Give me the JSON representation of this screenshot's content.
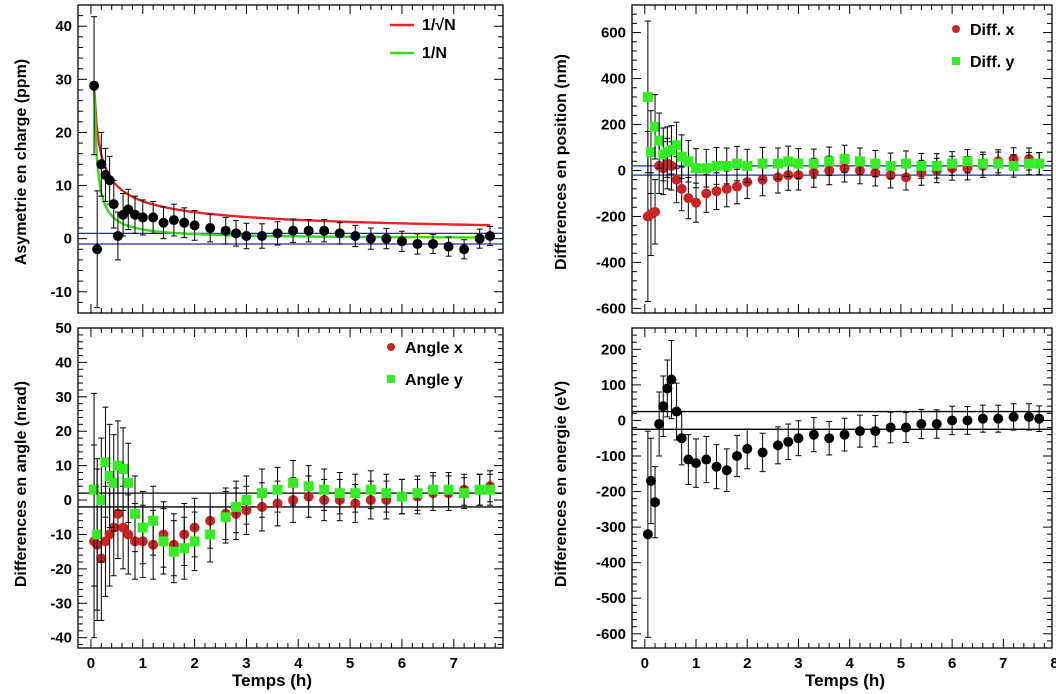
{
  "colors": {
    "red_curve": "#e8232a",
    "green_curve": "#33dd11",
    "blue_line": "#1a2ea8",
    "black": "#000000",
    "red_marker": "#cc2222",
    "green_marker": "#33ee22"
  },
  "chart_data": [
    {
      "type": "scatter",
      "id": "charge",
      "ylabel": "Asymetrie en charge  (ppm)",
      "xlabel": "",
      "xlim": [
        -0.25,
        7.95
      ],
      "ylim": [
        -14,
        44
      ],
      "yticks": [
        -10,
        0,
        10,
        20,
        30,
        40
      ],
      "xticks": [],
      "grid": false,
      "legend": "top-right",
      "series": [
        {
          "name": "",
          "marker": "circle",
          "color": "#000000",
          "x": [
            0.06,
            0.12,
            0.2,
            0.28,
            0.36,
            0.44,
            0.52,
            0.62,
            0.72,
            0.85,
            1.0,
            1.2,
            1.4,
            1.6,
            1.8,
            2.0,
            2.3,
            2.6,
            2.8,
            3.0,
            3.3,
            3.6,
            3.9,
            4.2,
            4.5,
            4.8,
            5.1,
            5.4,
            5.7,
            6.0,
            6.3,
            6.6,
            6.9,
            7.2,
            7.5,
            7.7
          ],
          "y": [
            28.8,
            -2.0,
            14.0,
            12.0,
            11.0,
            6.5,
            0.5,
            4.5,
            5.5,
            4.5,
            4.0,
            4.0,
            3.0,
            3.5,
            3.0,
            2.5,
            2.0,
            1.5,
            1.0,
            0.5,
            0.5,
            1.0,
            1.5,
            1.5,
            1.5,
            1.0,
            0.5,
            0.0,
            0.0,
            -0.5,
            -1.0,
            -1.0,
            -1.5,
            -2.0,
            0.0,
            0.5
          ],
          "err": [
            13.0,
            11.0,
            6.0,
            5.0,
            4.5,
            4.5,
            4.5,
            4.0,
            3.8,
            3.5,
            3.3,
            3.0,
            3.0,
            3.0,
            2.8,
            2.8,
            2.6,
            2.5,
            2.4,
            2.4,
            2.3,
            2.2,
            2.2,
            2.1,
            2.1,
            2.0,
            2.0,
            2.0,
            1.9,
            1.9,
            1.9,
            1.8,
            1.8,
            1.8,
            1.8,
            1.8
          ]
        }
      ],
      "curves": [
        {
          "name": "1/√N",
          "color": "#e8232a",
          "form": "inv_sqrt",
          "x0": 0.06,
          "y0": 28.8
        },
        {
          "name": "1/N",
          "color": "#33dd11",
          "form": "inv",
          "x0": 0.06,
          "y0": 28.8
        }
      ],
      "hlines": [
        {
          "y": 1.0,
          "color": "#1a2ea8"
        },
        {
          "y": -1.0,
          "color": "#1a2ea8"
        }
      ]
    },
    {
      "type": "scatter",
      "id": "position",
      "ylabel": "Differences en position  (nm)",
      "xlabel": "",
      "xlim": [
        -0.25,
        7.95
      ],
      "ylim": [
        -620,
        720
      ],
      "yticks": [
        -600,
        -400,
        -200,
        0,
        200,
        400,
        600
      ],
      "xticks": [],
      "grid": false,
      "legend": "top-right",
      "series": [
        {
          "name": "Diff.  x",
          "marker": "circle",
          "color": "#cc2222",
          "x": [
            0.06,
            0.12,
            0.2,
            0.28,
            0.36,
            0.44,
            0.52,
            0.62,
            0.72,
            0.85,
            1.0,
            1.2,
            1.4,
            1.6,
            1.8,
            2.0,
            2.3,
            2.6,
            2.8,
            3.0,
            3.3,
            3.6,
            3.9,
            4.2,
            4.5,
            4.8,
            5.1,
            5.4,
            5.7,
            6.0,
            6.3,
            6.6,
            6.9,
            7.2,
            7.5,
            7.7
          ],
          "y": [
            -200,
            -190,
            -180,
            20,
            10,
            30,
            20,
            -40,
            -80,
            -120,
            -140,
            -100,
            -90,
            -80,
            -70,
            -50,
            -40,
            -30,
            -20,
            -20,
            -10,
            0,
            10,
            0,
            -10,
            -20,
            -30,
            -10,
            0,
            10,
            10,
            20,
            40,
            50,
            50,
            30
          ],
          "err": [
            370,
            180,
            140,
            120,
            115,
            110,
            105,
            100,
            95,
            90,
            85,
            82,
            80,
            78,
            75,
            72,
            70,
            68,
            66,
            65,
            63,
            62,
            60,
            58,
            57,
            56,
            55,
            54,
            53,
            52,
            51,
            50,
            50,
            49,
            48,
            48
          ]
        },
        {
          "name": "Diff.  y",
          "marker": "square",
          "color": "#33ee22",
          "x": [
            0.06,
            0.12,
            0.2,
            0.28,
            0.36,
            0.44,
            0.52,
            0.62,
            0.72,
            0.85,
            1.0,
            1.2,
            1.4,
            1.6,
            1.8,
            2.0,
            2.3,
            2.6,
            2.8,
            3.0,
            3.3,
            3.6,
            3.9,
            4.2,
            4.5,
            4.8,
            5.1,
            5.4,
            5.7,
            6.0,
            6.3,
            6.6,
            6.9,
            7.2,
            7.5,
            7.7
          ],
          "y": [
            320,
            80,
            190,
            130,
            70,
            80,
            90,
            110,
            60,
            40,
            10,
            10,
            20,
            20,
            30,
            20,
            30,
            30,
            40,
            30,
            30,
            40,
            50,
            40,
            30,
            20,
            30,
            20,
            20,
            30,
            40,
            30,
            30,
            20,
            30,
            30
          ],
          "err": [
            330,
            180,
            140,
            120,
            115,
            110,
            105,
            100,
            95,
            90,
            85,
            82,
            80,
            78,
            75,
            72,
            70,
            68,
            66,
            65,
            63,
            62,
            60,
            58,
            57,
            56,
            55,
            54,
            53,
            52,
            51,
            50,
            50,
            49,
            48,
            48
          ]
        }
      ],
      "curves": [],
      "hlines": [
        {
          "y": 20,
          "color": "#1a2ea8"
        },
        {
          "y": -20,
          "color": "#1a2ea8"
        }
      ]
    },
    {
      "type": "scatter",
      "id": "angle",
      "ylabel": "Differences en angle  (nrad)",
      "xlabel": "Temps  (h)",
      "xlim": [
        -0.25,
        7.95
      ],
      "ylim": [
        -43,
        50
      ],
      "yticks": [
        -40,
        -30,
        -20,
        -10,
        0,
        10,
        20,
        30,
        40,
        50
      ],
      "xticks": [
        0,
        1,
        2,
        3,
        4,
        5,
        6,
        7
      ],
      "xticklabels": [
        "0",
        "1",
        "2",
        "3",
        "4",
        "5",
        "6",
        "7"
      ],
      "grid": false,
      "legend": "top-right",
      "series": [
        {
          "name": "Angle x",
          "marker": "circle",
          "color": "#cc2222",
          "x": [
            0.06,
            0.12,
            0.2,
            0.28,
            0.36,
            0.44,
            0.52,
            0.62,
            0.72,
            0.85,
            1.0,
            1.2,
            1.4,
            1.6,
            1.8,
            2.0,
            2.3,
            2.6,
            2.8,
            3.0,
            3.3,
            3.6,
            3.9,
            4.2,
            4.5,
            4.8,
            5.1,
            5.4,
            5.7,
            6.0,
            6.3,
            6.6,
            6.9,
            7.2,
            7.5,
            7.7
          ],
          "y": [
            -12,
            -13,
            -17,
            -12,
            -10,
            -8,
            -4,
            -8,
            -10,
            -12,
            -12,
            -13,
            -10,
            -13,
            -10,
            -8,
            -6,
            -4,
            -4,
            -3,
            -2,
            -1,
            0,
            1,
            0,
            0,
            -1,
            0,
            0,
            1,
            1,
            2,
            2,
            3,
            3,
            4
          ],
          "err": [
            28,
            22,
            18,
            16,
            15,
            14,
            13,
            12,
            11.5,
            11,
            10.5,
            10,
            9.5,
            9,
            9,
            8.5,
            8,
            7.5,
            7.5,
            7,
            7,
            6.5,
            6.5,
            6,
            6,
            6,
            5.5,
            5.5,
            5.5,
            5,
            5,
            5,
            5,
            4.5,
            4.5,
            4.5
          ]
        },
        {
          "name": "Angle y",
          "marker": "square",
          "color": "#33ee22",
          "x": [
            0.06,
            0.12,
            0.2,
            0.28,
            0.36,
            0.44,
            0.52,
            0.62,
            0.72,
            0.85,
            1.0,
            1.2,
            1.4,
            1.6,
            1.8,
            2.0,
            2.3,
            2.6,
            2.8,
            3.0,
            3.3,
            3.6,
            3.9,
            4.2,
            4.5,
            4.8,
            5.1,
            5.4,
            5.7,
            6.0,
            6.3,
            6.6,
            6.9,
            7.2,
            7.5,
            7.7
          ],
          "y": [
            3,
            -10,
            0,
            11,
            7,
            5,
            10,
            9,
            5,
            -4,
            -8,
            -6,
            -12,
            -15,
            -14,
            -12,
            -10,
            -5,
            -2,
            0,
            2,
            3,
            5,
            4,
            3,
            2,
            2,
            3,
            2,
            1,
            2,
            3,
            3,
            2,
            3,
            3
          ],
          "err": [
            28,
            22,
            18,
            16,
            15,
            14,
            13,
            12,
            11.5,
            11,
            10.5,
            10,
            9.5,
            9,
            9,
            8.5,
            8,
            7.5,
            7.5,
            7,
            7,
            6.5,
            6.5,
            6,
            6,
            6,
            5.5,
            5.5,
            5.5,
            5,
            5,
            5,
            5,
            4.5,
            4.5,
            4.5
          ]
        }
      ],
      "curves": [],
      "hlines": [
        {
          "y": 2,
          "color": "#000000"
        },
        {
          "y": -2,
          "color": "#000000"
        }
      ]
    },
    {
      "type": "scatter",
      "id": "energie",
      "ylabel": "Differences en energie  (eV)",
      "xlabel": "Temps  (h)",
      "xlim": [
        -0.25,
        7.95
      ],
      "ylim": [
        -640,
        260
      ],
      "yticks": [
        -600,
        -500,
        -400,
        -300,
        -200,
        -100,
        0,
        100,
        200
      ],
      "xticks": [
        0,
        1,
        2,
        3,
        4,
        5,
        6,
        7,
        8
      ],
      "xticklabels": [
        "0",
        "1",
        "2",
        "3",
        "4",
        "5",
        "6",
        "7",
        "8"
      ],
      "grid": false,
      "legend": "none",
      "series": [
        {
          "name": "",
          "marker": "circle",
          "color": "#000000",
          "x": [
            0.06,
            0.12,
            0.2,
            0.28,
            0.36,
            0.44,
            0.52,
            0.62,
            0.72,
            0.85,
            1.0,
            1.2,
            1.4,
            1.6,
            1.8,
            2.0,
            2.3,
            2.6,
            2.8,
            3.0,
            3.3,
            3.6,
            3.9,
            4.2,
            4.5,
            4.8,
            5.1,
            5.4,
            5.7,
            6.0,
            6.3,
            6.6,
            6.9,
            7.2,
            7.5,
            7.7
          ],
          "y": [
            -320,
            -170,
            -230,
            -10,
            40,
            90,
            115,
            25,
            -50,
            -110,
            -120,
            -110,
            -130,
            -140,
            -100,
            -80,
            -90,
            -70,
            -60,
            -50,
            -40,
            -50,
            -40,
            -30,
            -30,
            -20,
            -20,
            -10,
            -10,
            0,
            0,
            5,
            5,
            10,
            10,
            5
          ],
          "err": [
            290,
            120,
            100,
            90,
            85,
            80,
            110,
            80,
            75,
            70,
            68,
            65,
            62,
            60,
            58,
            56,
            54,
            52,
            50,
            49,
            48,
            47,
            46,
            45,
            44,
            43,
            42,
            41,
            40,
            40,
            39,
            38,
            38,
            37,
            37,
            36
          ]
        }
      ],
      "curves": [],
      "hlines": [
        {
          "y": 25,
          "color": "#000000"
        },
        {
          "y": -25,
          "color": "#000000"
        }
      ]
    }
  ]
}
